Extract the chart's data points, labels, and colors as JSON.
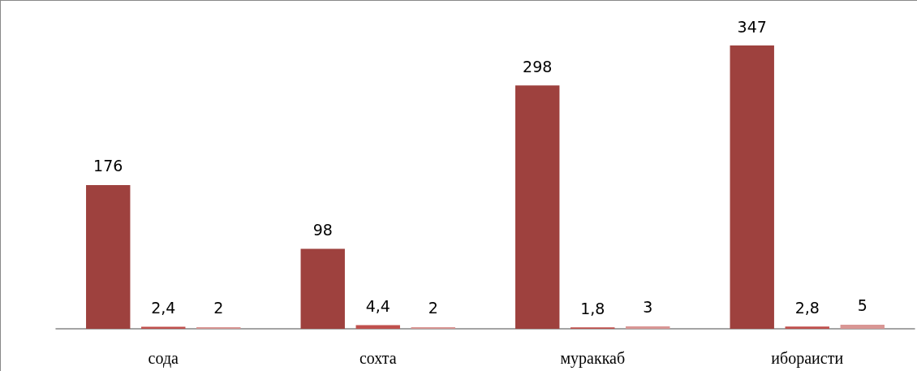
{
  "chart_data": {
    "type": "bar",
    "categories": [
      "сода",
      "сохта",
      "мураккаб",
      "ибораисти"
    ],
    "series": [
      {
        "color": "#9e413e",
        "values": [
          176,
          98,
          298,
          347
        ],
        "value_labels": [
          "176",
          "98",
          "298",
          "347"
        ]
      },
      {
        "color": "#c0504d",
        "values": [
          2.4,
          4.4,
          1.8,
          2.8
        ],
        "value_labels": [
          "2,4",
          "4,4",
          "1,8",
          "2,8"
        ]
      },
      {
        "color": "#d99694",
        "values": [
          2,
          2,
          3,
          5
        ],
        "value_labels": [
          "2",
          "2",
          "3",
          "5"
        ]
      }
    ]
  }
}
